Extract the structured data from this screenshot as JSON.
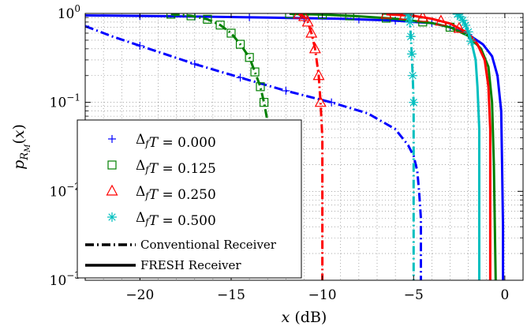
{
  "chart_data": {
    "type": "line",
    "xlabel": "x (dB)",
    "ylabel": "p_{R_M}(x)",
    "xlim": [
      -23,
      1
    ],
    "ylim": [
      0.001,
      1
    ],
    "yscale": "log",
    "grid": true,
    "legend_placement": "bottom-left",
    "x_tick_labels": [
      "−20",
      "−15",
      "−10",
      "−5",
      "0"
    ],
    "x_ticks": [
      -20,
      -15,
      -10,
      -5,
      0
    ],
    "y_tick_labels": [
      {
        "base": "10",
        "exp": "0",
        "value": 1
      },
      {
        "base": "10",
        "exp": "−1",
        "value": 0.1
      },
      {
        "base": "10",
        "exp": "−2",
        "value": 0.01
      },
      {
        "base": "10",
        "exp": "−3",
        "value": 0.001
      }
    ],
    "legend": {
      "entries": [
        {
          "prefix": "Δ",
          "sub": "f",
          "rest": "T = 0.000",
          "marker": "plus",
          "color": "#0000ff"
        },
        {
          "prefix": "Δ",
          "sub": "f",
          "rest": "T = 0.125",
          "marker": "square",
          "color": "#008000"
        },
        {
          "prefix": "Δ",
          "sub": "f",
          "rest": "T = 0.250",
          "marker": "triangle",
          "color": "#ff0000"
        },
        {
          "prefix": "Δ",
          "sub": "f",
          "rest": "T = 0.500",
          "marker": "asterisk",
          "color": "#00bfbf"
        }
      ],
      "line_styles": [
        {
          "label": "Conventional Receiver",
          "style": "dashdot"
        },
        {
          "label": "FRESH Receiver",
          "style": "solid"
        }
      ]
    },
    "series": [
      {
        "color": "#0000ff",
        "style": "dashdot",
        "marker": "plus",
        "points": [
          [
            -23,
            0.72
          ],
          [
            -21.5,
            0.55
          ],
          [
            -19.5,
            0.4
          ],
          [
            -17,
            0.27
          ],
          [
            -14.5,
            0.19
          ],
          [
            -12,
            0.135
          ],
          [
            -9.5,
            0.1
          ],
          [
            -7.5,
            0.075
          ],
          [
            -6,
            0.05
          ],
          [
            -5.3,
            0.033
          ],
          [
            -5,
            0.025
          ],
          [
            -4.8,
            0.017
          ],
          [
            -4.7,
            0.01
          ],
          [
            -4.6,
            0.005
          ],
          [
            -4.6,
            0.002
          ],
          [
            -4.6,
            0.001
          ]
        ],
        "marker_x": [
          -23,
          -20,
          -17,
          -14.5,
          -12,
          -9.5
        ]
      },
      {
        "color": "#0000ff",
        "style": "solid",
        "marker": "plus",
        "points": [
          [
            -23,
            0.95
          ],
          [
            -18,
            0.93
          ],
          [
            -13,
            0.9
          ],
          [
            -9,
            0.87
          ],
          [
            -6,
            0.83
          ],
          [
            -4,
            0.78
          ],
          [
            -3,
            0.7
          ],
          [
            -2,
            0.58
          ],
          [
            -1.2,
            0.45
          ],
          [
            -0.7,
            0.33
          ],
          [
            -0.4,
            0.2
          ],
          [
            -0.2,
            0.08
          ],
          [
            -0.15,
            0.02
          ],
          [
            -0.1,
            0.004
          ],
          [
            -0.1,
            0.001
          ]
        ],
        "marker_x": [
          -23,
          -20,
          -17,
          -14,
          -11,
          -8,
          -6,
          -4,
          -3,
          -2
        ]
      },
      {
        "color": "#008000",
        "style": "dashdot",
        "marker": "square",
        "points": [
          [
            -18.3,
            0.98
          ],
          [
            -17.2,
            0.94
          ],
          [
            -16.3,
            0.86
          ],
          [
            -15.6,
            0.74
          ],
          [
            -15,
            0.6
          ],
          [
            -14.5,
            0.45
          ],
          [
            -14,
            0.32
          ],
          [
            -13.7,
            0.22
          ],
          [
            -13.4,
            0.15
          ],
          [
            -13.2,
            0.1
          ],
          [
            -13,
            0.06
          ],
          [
            -13,
            0.04
          ]
        ],
        "marker_x": [
          -18.3,
          -17.2,
          -16.3,
          -15.6,
          -15,
          -14.5,
          -14,
          -13.7,
          -13.4,
          -13.2
        ]
      },
      {
        "color": "#008000",
        "style": "solid",
        "marker": "square",
        "points": [
          [
            -11.8,
            0.99
          ],
          [
            -10,
            0.97
          ],
          [
            -8,
            0.93
          ],
          [
            -6,
            0.87
          ],
          [
            -4,
            0.78
          ],
          [
            -3,
            0.7
          ],
          [
            -2,
            0.56
          ],
          [
            -1.3,
            0.4
          ],
          [
            -0.9,
            0.25
          ],
          [
            -0.7,
            0.1
          ],
          [
            -0.6,
            0.02
          ],
          [
            -0.5,
            0.001
          ]
        ],
        "marker_x": [
          -11.8,
          -11,
          -10,
          -8.5,
          -6.5,
          -4.5,
          -3
        ]
      },
      {
        "color": "#ff0000",
        "style": "dashdot",
        "marker": "triangle",
        "points": [
          [
            -11.3,
            0.98
          ],
          [
            -11,
            0.92
          ],
          [
            -10.8,
            0.8
          ],
          [
            -10.6,
            0.6
          ],
          [
            -10.4,
            0.4
          ],
          [
            -10.2,
            0.2
          ],
          [
            -10.1,
            0.1
          ],
          [
            -10,
            0.04
          ],
          [
            -10,
            0.01
          ],
          [
            -10,
            0.001
          ]
        ],
        "marker_x": [
          -11.3,
          -11,
          -10.8,
          -10.6,
          -10.4,
          -10.2,
          -10.1
        ]
      },
      {
        "color": "#ff0000",
        "style": "solid",
        "marker": "triangle",
        "points": [
          [
            -6.5,
            0.98
          ],
          [
            -5,
            0.94
          ],
          [
            -4,
            0.87
          ],
          [
            -3,
            0.77
          ],
          [
            -2,
            0.6
          ],
          [
            -1.5,
            0.45
          ],
          [
            -1.1,
            0.3
          ],
          [
            -0.9,
            0.15
          ],
          [
            -0.8,
            0.05
          ],
          [
            -0.8,
            0.01
          ],
          [
            -0.8,
            0.001
          ]
        ],
        "marker_x": [
          -6.5,
          -5.5,
          -4.5,
          -3.5,
          -2.5
        ]
      },
      {
        "color": "#00bfbf",
        "style": "dashdot",
        "marker": "asterisk",
        "points": [
          [
            -5.3,
            0.98
          ],
          [
            -5.2,
            0.8
          ],
          [
            -5.15,
            0.55
          ],
          [
            -5.1,
            0.35
          ],
          [
            -5.05,
            0.2
          ],
          [
            -5,
            0.1
          ],
          [
            -5,
            0.03
          ],
          [
            -5,
            0.01
          ],
          [
            -5,
            0.001
          ]
        ],
        "marker_x": [
          -5.3,
          -5.25,
          -5.2,
          -5.15,
          -5.1,
          -5.05,
          -5
        ]
      },
      {
        "color": "#00bfbf",
        "style": "solid",
        "marker": "asterisk",
        "points": [
          [
            -2.6,
            0.98
          ],
          [
            -2.4,
            0.9
          ],
          [
            -2.2,
            0.78
          ],
          [
            -2,
            0.62
          ],
          [
            -1.8,
            0.45
          ],
          [
            -1.6,
            0.3
          ],
          [
            -1.5,
            0.15
          ],
          [
            -1.4,
            0.05
          ],
          [
            -1.4,
            0.01
          ],
          [
            -1.4,
            0.001
          ]
        ],
        "marker_x": [
          -2.6,
          -2.45,
          -2.3,
          -2.15,
          -2,
          -1.85
        ]
      }
    ]
  }
}
